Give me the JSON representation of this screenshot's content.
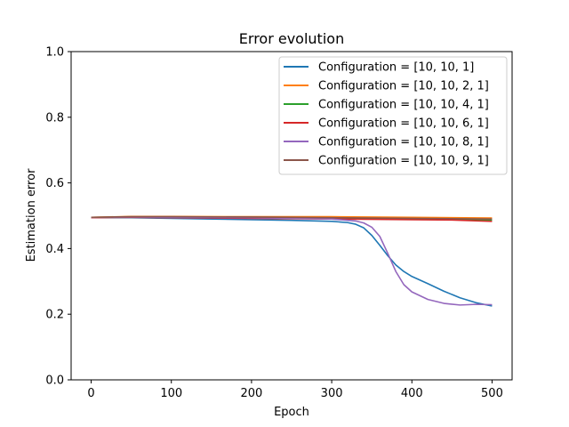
{
  "chart_data": {
    "type": "line",
    "title": "Error evolution",
    "xlabel": "Epoch",
    "ylabel": "Estimation error",
    "xlim": [
      -25,
      525
    ],
    "ylim": [
      0.0,
      1.0
    ],
    "xticks": [
      0,
      100,
      200,
      300,
      400,
      500
    ],
    "xtick_labels": [
      "0",
      "100",
      "200",
      "300",
      "400",
      "500"
    ],
    "yticks": [
      0.0,
      0.2,
      0.4,
      0.6,
      0.8,
      1.0
    ],
    "ytick_labels": [
      "0.0",
      "0.2",
      "0.4",
      "0.6",
      "0.8",
      "1.0"
    ],
    "grid": false,
    "legend_position": "top-right",
    "series": [
      {
        "name": "Configuration = [10, 10, 1]",
        "color": "#1f77b4",
        "x": [
          0,
          50,
          100,
          150,
          200,
          250,
          300,
          320,
          330,
          340,
          350,
          360,
          370,
          380,
          390,
          400,
          420,
          440,
          460,
          480,
          500
        ],
        "y": [
          0.494,
          0.494,
          0.492,
          0.49,
          0.488,
          0.486,
          0.483,
          0.479,
          0.474,
          0.463,
          0.44,
          0.41,
          0.378,
          0.35,
          0.33,
          0.315,
          0.293,
          0.27,
          0.25,
          0.235,
          0.225
        ]
      },
      {
        "name": "Configuration = [10, 10, 2, 1]",
        "color": "#ff7f0e",
        "x": [
          0,
          50,
          100,
          200,
          300,
          400,
          500
        ],
        "y": [
          0.495,
          0.498,
          0.498,
          0.497,
          0.497,
          0.495,
          0.493
        ]
      },
      {
        "name": "Configuration = [10, 10, 4, 1]",
        "color": "#2ca02c",
        "x": [
          0,
          50,
          100,
          200,
          300,
          400,
          500
        ],
        "y": [
          0.495,
          0.496,
          0.496,
          0.494,
          0.492,
          0.49,
          0.487
        ]
      },
      {
        "name": "Configuration = [10, 10, 6, 1]",
        "color": "#d62728",
        "x": [
          0,
          50,
          100,
          200,
          300,
          400,
          450,
          500
        ],
        "y": [
          0.494,
          0.495,
          0.494,
          0.492,
          0.49,
          0.488,
          0.487,
          0.483
        ]
      },
      {
        "name": "Configuration = [10, 10, 8, 1]",
        "color": "#9467bd",
        "x": [
          0,
          50,
          100,
          200,
          300,
          330,
          340,
          350,
          360,
          370,
          380,
          390,
          400,
          420,
          440,
          460,
          480,
          500
        ],
        "y": [
          0.495,
          0.496,
          0.495,
          0.494,
          0.49,
          0.484,
          0.478,
          0.465,
          0.437,
          0.385,
          0.33,
          0.29,
          0.268,
          0.245,
          0.233,
          0.228,
          0.23,
          0.229
        ]
      },
      {
        "name": "Configuration = [10, 10, 9, 1]",
        "color": "#8c564b",
        "x": [
          0,
          50,
          100,
          200,
          300,
          400,
          500
        ],
        "y": [
          0.495,
          0.497,
          0.497,
          0.496,
          0.494,
          0.492,
          0.49
        ]
      }
    ]
  }
}
